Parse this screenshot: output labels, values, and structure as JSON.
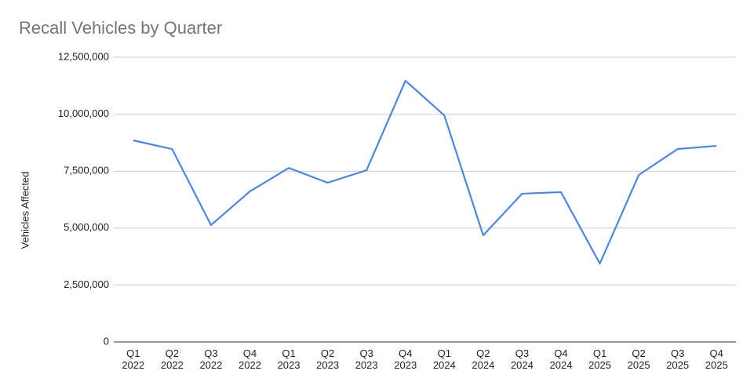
{
  "chart_data": {
    "type": "line",
    "title": "Recall Vehicles by Quarter",
    "y_label": "Vehicles Affected",
    "categories": [
      "Q1 2022",
      "Q2 2022",
      "Q3 2022",
      "Q4 2022",
      "Q1 2023",
      "Q2 2023",
      "Q3 2023",
      "Q4 2023",
      "Q1 2024",
      "Q2 2024",
      "Q3 2024",
      "Q4 2024",
      "Q1 2025",
      "Q2 2025",
      "Q3 2025",
      "Q4 2025"
    ],
    "series": [
      {
        "name": "Vehicles Affected",
        "color": "#4a86e8",
        "values": [
          8850000,
          8470000,
          5130000,
          6610000,
          7640000,
          6990000,
          7540000,
          11470000,
          9950000,
          4680000,
          6510000,
          6580000,
          3440000,
          7330000,
          8470000,
          8610000
        ]
      }
    ],
    "ylim": [
      0,
      12500000
    ],
    "yticks": [
      0,
      {
        "value": 2500000,
        "label": "2,500,000"
      },
      {
        "value": 5000000,
        "label": "5,000,000"
      },
      {
        "value": 7500000,
        "label": "7,500,000"
      },
      {
        "value": 10000000,
        "label": "10,000,000"
      },
      {
        "value": 12500000,
        "label": "12,500,000"
      }
    ],
    "grid": true
  }
}
